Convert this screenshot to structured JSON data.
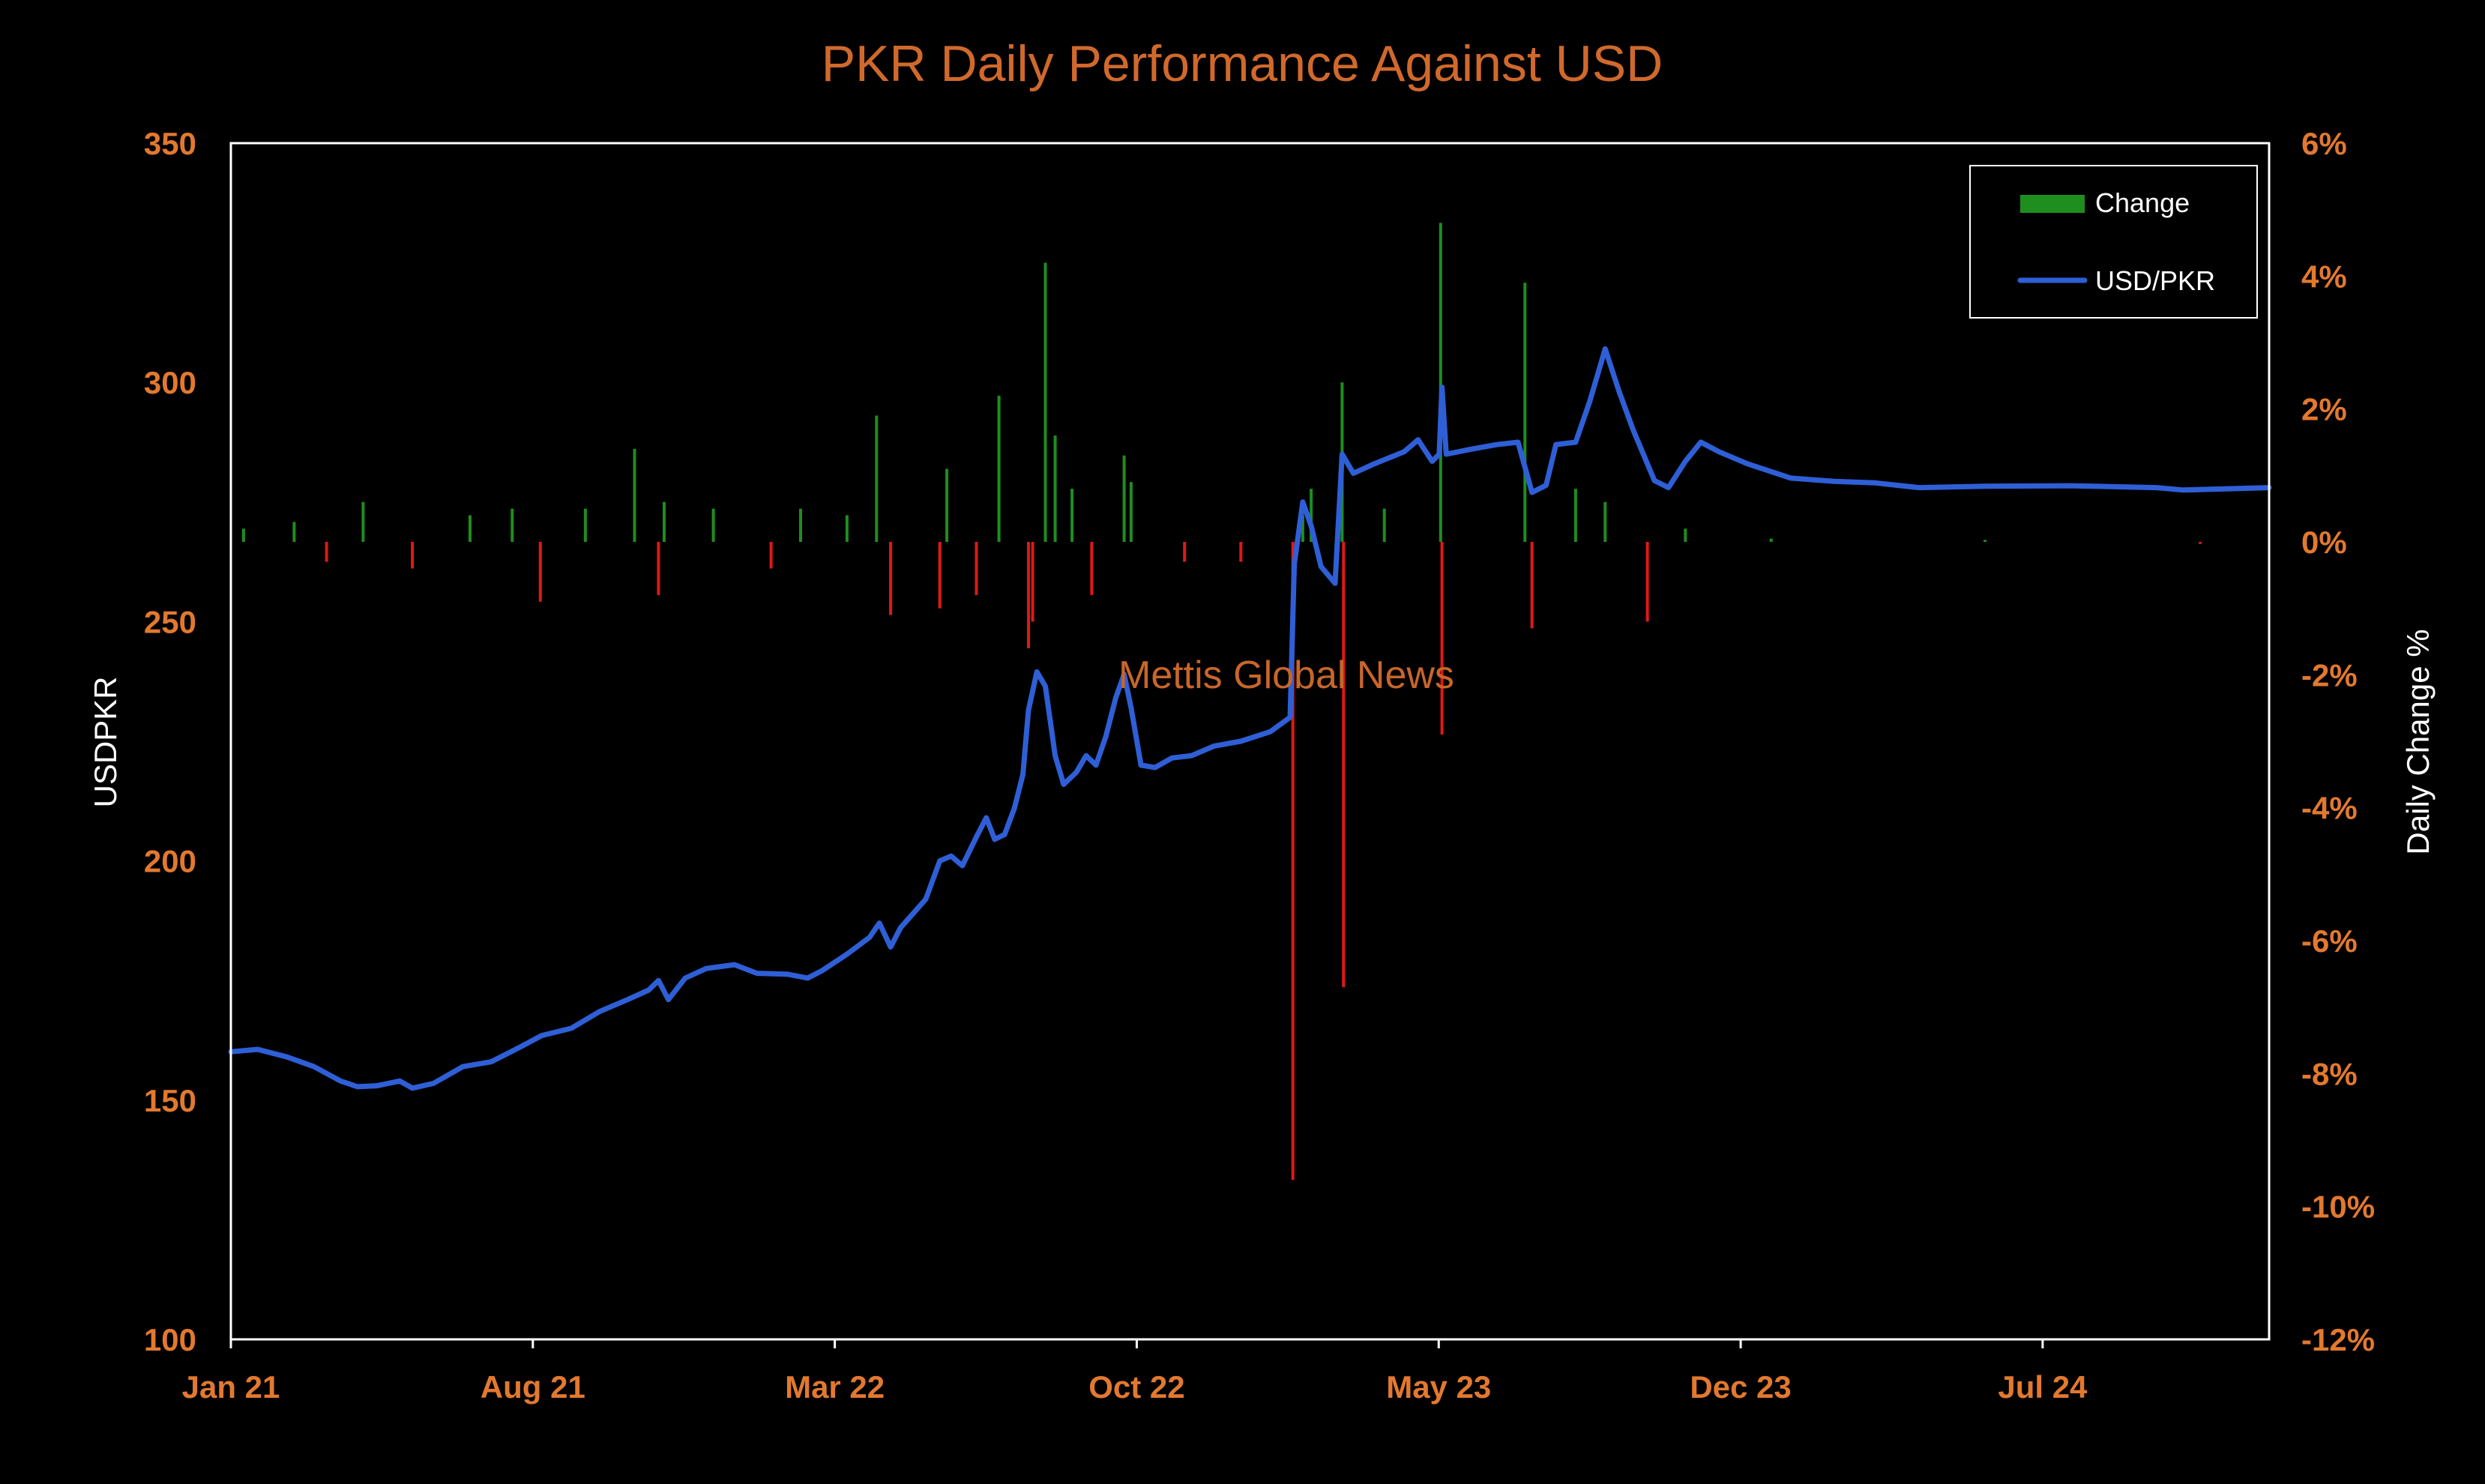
{
  "chart_data": {
    "type": "bar+line",
    "title": "PKR Daily Performance Against USD",
    "watermark": "Mettis Global News",
    "y_left_label": "USDPKR",
    "y_right_label": "Daily Change %",
    "y_left_ticks": [
      "350",
      "300",
      "250",
      "200",
      "150",
      "100"
    ],
    "y_right_ticks": [
      "6%",
      "4%",
      "2%",
      "0%",
      "-2%",
      "-4%",
      "-6%",
      "-8%",
      "-10%",
      "-12%"
    ],
    "x_ticks": [
      "Jan 21",
      "Aug 21",
      "Mar 22",
      "Oct 22",
      "May 23",
      "Dec 23",
      "Jul 24"
    ],
    "y_left_range": [
      100,
      350
    ],
    "y_right_range": [
      -12,
      6
    ],
    "x_range": [
      "2021-01-01",
      "2024-12-20"
    ],
    "legend": {
      "position": "top-right",
      "items": [
        "Change",
        "USD/PKR"
      ]
    },
    "colors": {
      "line": "#2f5fd6",
      "positive": "#1e8e1e",
      "negative": "#e01818",
      "axis_text": "#e2792f",
      "title": "#d0692c"
    },
    "series": [
      {
        "name": "USD/PKR",
        "type": "line",
        "axis": "left",
        "points": [
          [
            "2021-01-01",
            160.1
          ],
          [
            "2021-01-20",
            160.6
          ],
          [
            "2021-02-10",
            159.0
          ],
          [
            "2021-03-01",
            157.0
          ],
          [
            "2021-03-20",
            154.0
          ],
          [
            "2021-04-01",
            152.8
          ],
          [
            "2021-04-15",
            153.0
          ],
          [
            "2021-05-01",
            154.0
          ],
          [
            "2021-05-10",
            152.5
          ],
          [
            "2021-05-25",
            153.5
          ],
          [
            "2021-06-15",
            157.0
          ],
          [
            "2021-07-05",
            158.0
          ],
          [
            "2021-07-25",
            161.0
          ],
          [
            "2021-08-10",
            163.5
          ],
          [
            "2021-08-31",
            165.0
          ],
          [
            "2021-09-20",
            168.5
          ],
          [
            "2021-10-10",
            171.0
          ],
          [
            "2021-10-25",
            173.0
          ],
          [
            "2021-11-01",
            175.0
          ],
          [
            "2021-11-08",
            171.0
          ],
          [
            "2021-11-20",
            175.5
          ],
          [
            "2021-12-05",
            177.5
          ],
          [
            "2021-12-25",
            178.3
          ],
          [
            "2022-01-10",
            176.5
          ],
          [
            "2022-02-01",
            176.3
          ],
          [
            "2022-02-15",
            175.5
          ],
          [
            "2022-02-25",
            177.0
          ],
          [
            "2022-03-15",
            180.5
          ],
          [
            "2022-03-31",
            184.0
          ],
          [
            "2022-04-07",
            187.0
          ],
          [
            "2022-04-15",
            182.0
          ],
          [
            "2022-04-22",
            186.0
          ],
          [
            "2022-05-10",
            192.0
          ],
          [
            "2022-05-20",
            200.0
          ],
          [
            "2022-05-28",
            201.0
          ],
          [
            "2022-06-05",
            199.0
          ],
          [
            "2022-06-15",
            205.0
          ],
          [
            "2022-06-22",
            209.0
          ],
          [
            "2022-06-28",
            204.5
          ],
          [
            "2022-07-05",
            205.5
          ],
          [
            "2022-07-12",
            211.0
          ],
          [
            "2022-07-18",
            218.0
          ],
          [
            "2022-07-22",
            231.5
          ],
          [
            "2022-07-28",
            239.5
          ],
          [
            "2022-08-03",
            236.5
          ],
          [
            "2022-08-10",
            222.0
          ],
          [
            "2022-08-16",
            216.0
          ],
          [
            "2022-08-25",
            218.5
          ],
          [
            "2022-09-01",
            222.0
          ],
          [
            "2022-09-08",
            220.0
          ],
          [
            "2022-09-15",
            226.0
          ],
          [
            "2022-09-22",
            234.0
          ],
          [
            "2022-09-28",
            239.0
          ],
          [
            "2022-10-03",
            232.0
          ],
          [
            "2022-10-10",
            220.0
          ],
          [
            "2022-10-20",
            219.5
          ],
          [
            "2022-11-01",
            221.5
          ],
          [
            "2022-11-15",
            222.0
          ],
          [
            "2022-12-01",
            224.0
          ],
          [
            "2022-12-20",
            225.0
          ],
          [
            "2023-01-10",
            227.0
          ],
          [
            "2023-01-24",
            230.0
          ],
          [
            "2023-01-27",
            262.0
          ],
          [
            "2023-02-02",
            275.0
          ],
          [
            "2023-02-08",
            270.0
          ],
          [
            "2023-02-15",
            261.5
          ],
          [
            "2023-02-25",
            258.0
          ],
          [
            "2023-03-02",
            285.0
          ],
          [
            "2023-03-10",
            281.0
          ],
          [
            "2023-03-25",
            283.0
          ],
          [
            "2023-04-15",
            285.5
          ],
          [
            "2023-04-25",
            288.0
          ],
          [
            "2023-05-05",
            283.5
          ],
          [
            "2023-05-10",
            285.0
          ],
          [
            "2023-05-12",
            299.0
          ],
          [
            "2023-05-15",
            285.0
          ],
          [
            "2023-06-01",
            286.0
          ],
          [
            "2023-06-20",
            287.0
          ],
          [
            "2023-07-05",
            287.5
          ],
          [
            "2023-07-15",
            277.0
          ],
          [
            "2023-07-25",
            278.5
          ],
          [
            "2023-08-01",
            287.0
          ],
          [
            "2023-08-15",
            287.5
          ],
          [
            "2023-08-25",
            296.0
          ],
          [
            "2023-09-05",
            307.0
          ],
          [
            "2023-09-15",
            298.0
          ],
          [
            "2023-09-25",
            290.0
          ],
          [
            "2023-10-10",
            279.5
          ],
          [
            "2023-10-20",
            278.0
          ],
          [
            "2023-11-01",
            283.5
          ],
          [
            "2023-11-12",
            287.5
          ],
          [
            "2023-11-25",
            285.5
          ],
          [
            "2023-12-15",
            283.0
          ],
          [
            "2024-01-15",
            280.0
          ],
          [
            "2024-02-15",
            279.3
          ],
          [
            "2024-03-15",
            279.0
          ],
          [
            "2024-04-15",
            278.0
          ],
          [
            "2024-06-01",
            278.3
          ],
          [
            "2024-08-01",
            278.4
          ],
          [
            "2024-10-01",
            278.0
          ],
          [
            "2024-10-20",
            277.5
          ],
          [
            "2024-12-20",
            278.0
          ]
        ]
      },
      {
        "name": "Change",
        "type": "bar",
        "axis": "right",
        "points": [
          [
            "2021-01-10",
            0.2
          ],
          [
            "2021-02-15",
            0.3
          ],
          [
            "2021-03-10",
            -0.3
          ],
          [
            "2021-04-05",
            0.6
          ],
          [
            "2021-05-10",
            -0.4
          ],
          [
            "2021-06-20",
            0.4
          ],
          [
            "2021-07-20",
            0.5
          ],
          [
            "2021-08-09",
            -0.9
          ],
          [
            "2021-09-10",
            0.5
          ],
          [
            "2021-10-15",
            1.4
          ],
          [
            "2021-11-01",
            -0.8
          ],
          [
            "2021-11-05",
            0.6
          ],
          [
            "2021-12-10",
            0.5
          ],
          [
            "2022-01-20",
            -0.4
          ],
          [
            "2022-02-10",
            0.5
          ],
          [
            "2022-03-15",
            0.4
          ],
          [
            "2022-04-05",
            1.9
          ],
          [
            "2022-04-15",
            -1.1
          ],
          [
            "2022-05-20",
            -1.0
          ],
          [
            "2022-05-25",
            1.1
          ],
          [
            "2022-06-15",
            -0.8
          ],
          [
            "2022-07-01",
            2.2
          ],
          [
            "2022-07-22",
            -1.6
          ],
          [
            "2022-07-25",
            -1.2
          ],
          [
            "2022-08-03",
            4.2
          ],
          [
            "2022-08-10",
            1.6
          ],
          [
            "2022-08-22",
            0.8
          ],
          [
            "2022-09-05",
            -0.8
          ],
          [
            "2022-09-28",
            1.3
          ],
          [
            "2022-10-03",
            0.9
          ],
          [
            "2022-11-10",
            -0.3
          ],
          [
            "2022-12-20",
            -0.3
          ],
          [
            "2023-01-26",
            -9.6
          ],
          [
            "2023-02-02",
            0.4
          ],
          [
            "2023-02-08",
            0.8
          ],
          [
            "2023-03-02",
            2.4
          ],
          [
            "2023-03-03",
            -6.7
          ],
          [
            "2023-04-01",
            0.5
          ],
          [
            "2023-05-11",
            4.8
          ],
          [
            "2023-05-12",
            -2.9
          ],
          [
            "2023-07-10",
            3.9
          ],
          [
            "2023-07-15",
            -1.3
          ],
          [
            "2023-08-15",
            0.8
          ],
          [
            "2023-09-05",
            0.6
          ],
          [
            "2023-10-05",
            -1.2
          ],
          [
            "2023-11-01",
            0.2
          ],
          [
            "2024-01-01",
            0.05
          ],
          [
            "2024-06-01",
            0.03
          ],
          [
            "2024-11-01",
            -0.03
          ]
        ]
      }
    ]
  }
}
